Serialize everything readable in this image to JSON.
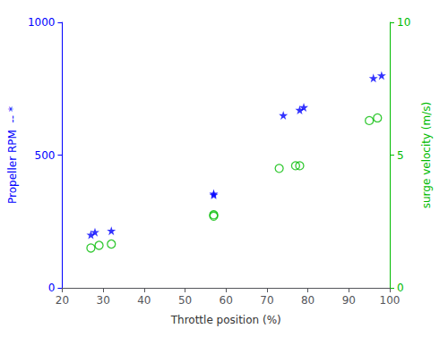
{
  "chart_data": {
    "type": "scatter",
    "xlabel": "Throttle position (%)",
    "ylabel": "Propeller RPM  -- *",
    "y2label": "surge velocity (m/s)",
    "xlim": [
      20,
      100
    ],
    "xticks": [
      20,
      30,
      40,
      50,
      60,
      70,
      80,
      90,
      100
    ],
    "ylim": [
      0,
      1000
    ],
    "yticks": [
      0,
      500,
      1000
    ],
    "y2lim": [
      0,
      10
    ],
    "y2ticks": [
      0,
      5,
      10
    ],
    "grid": false,
    "series": [
      {
        "x": [
          27,
          28,
          32,
          57,
          57,
          74,
          78,
          79,
          96,
          98
        ],
        "values": [
          200,
          210,
          215,
          350,
          355,
          650,
          670,
          680,
          790,
          800
        ],
        "color": "#0000ff",
        "marker": "star"
      },
      {
        "x": [
          27,
          29,
          32,
          57,
          57,
          73,
          77,
          78,
          95,
          97
        ],
        "values": [
          1.5,
          1.6,
          1.65,
          2.7,
          2.75,
          4.5,
          4.6,
          4.6,
          6.3,
          6.4
        ],
        "color": "#00bb00",
        "marker": "circle",
        "axis": "y2"
      }
    ]
  }
}
